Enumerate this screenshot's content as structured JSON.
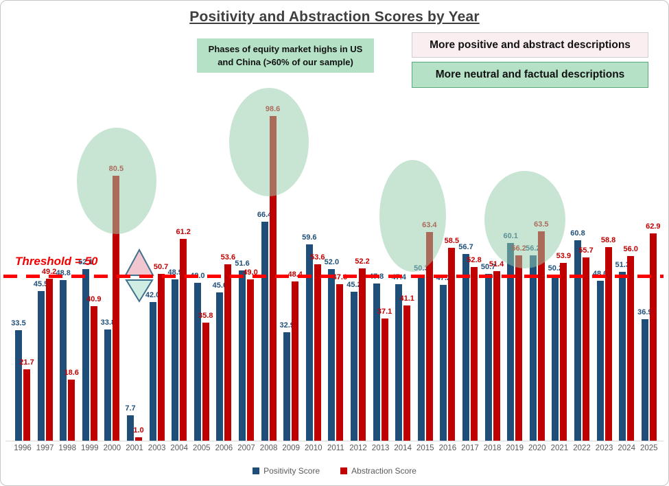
{
  "title": "Positivity and Abstraction Scores by Year",
  "annotation_box": {
    "line1": "Phases of equity market highs in US",
    "line2": "and China (>60% of our sample)"
  },
  "callouts": {
    "positive": "More positive and abstract descriptions",
    "neutral": "More neutral and factual descriptions"
  },
  "threshold": {
    "label": "Threshold = 50",
    "value": 50
  },
  "colors": {
    "positivity": "#1F4E79",
    "abstraction": "#C00000",
    "threshold_line": "#FE0000",
    "highlight_ellipse": "#CFE9DA",
    "up_triangle_fill": "#F2C6CE",
    "down_triangle_fill": "#CFEDE2"
  },
  "chart_data": {
    "type": "bar",
    "title": "Positivity and Abstraction Scores by Year",
    "categories": [
      "1996",
      "1997",
      "1998",
      "1999",
      "2000",
      "2001",
      "2003",
      "2004",
      "2005",
      "2006",
      "2007",
      "2008",
      "2009",
      "2010",
      "2011",
      "2012",
      "2013",
      "2014",
      "2015",
      "2016",
      "2017",
      "2018",
      "2019",
      "2020",
      "2021",
      "2022",
      "2023",
      "2024",
      "2025"
    ],
    "series": [
      {
        "name": "Positivity Score",
        "color": "#1F4E79",
        "values": [
          33.5,
          45.5,
          48.8,
          52.1,
          33.8,
          7.7,
          42.0,
          48.9,
          48.0,
          45.0,
          51.6,
          66.4,
          32.9,
          59.6,
          52.0,
          45.2,
          47.8,
          47.4,
          50.3,
          47.2,
          56.7,
          50.7,
          60.1,
          56.2,
          50.2,
          60.8,
          48.6,
          51.3,
          36.9
        ]
      },
      {
        "name": "Abstraction Score",
        "color": "#C00000",
        "values": [
          21.7,
          49.2,
          18.6,
          40.9,
          80.5,
          1.0,
          50.7,
          61.2,
          35.8,
          53.6,
          49.0,
          98.6,
          48.4,
          53.6,
          47.6,
          52.2,
          37.1,
          41.1,
          63.4,
          58.5,
          52.8,
          51.4,
          56.2,
          63.5,
          53.9,
          55.7,
          58.8,
          56.0,
          62.9
        ]
      }
    ],
    "ylim": [
      0,
      105
    ],
    "threshold": 50,
    "grid": false,
    "legend_position": "bottom",
    "highlighted_periods": [
      "2000",
      "2008",
      "2015-2016",
      "2019-2020"
    ]
  }
}
